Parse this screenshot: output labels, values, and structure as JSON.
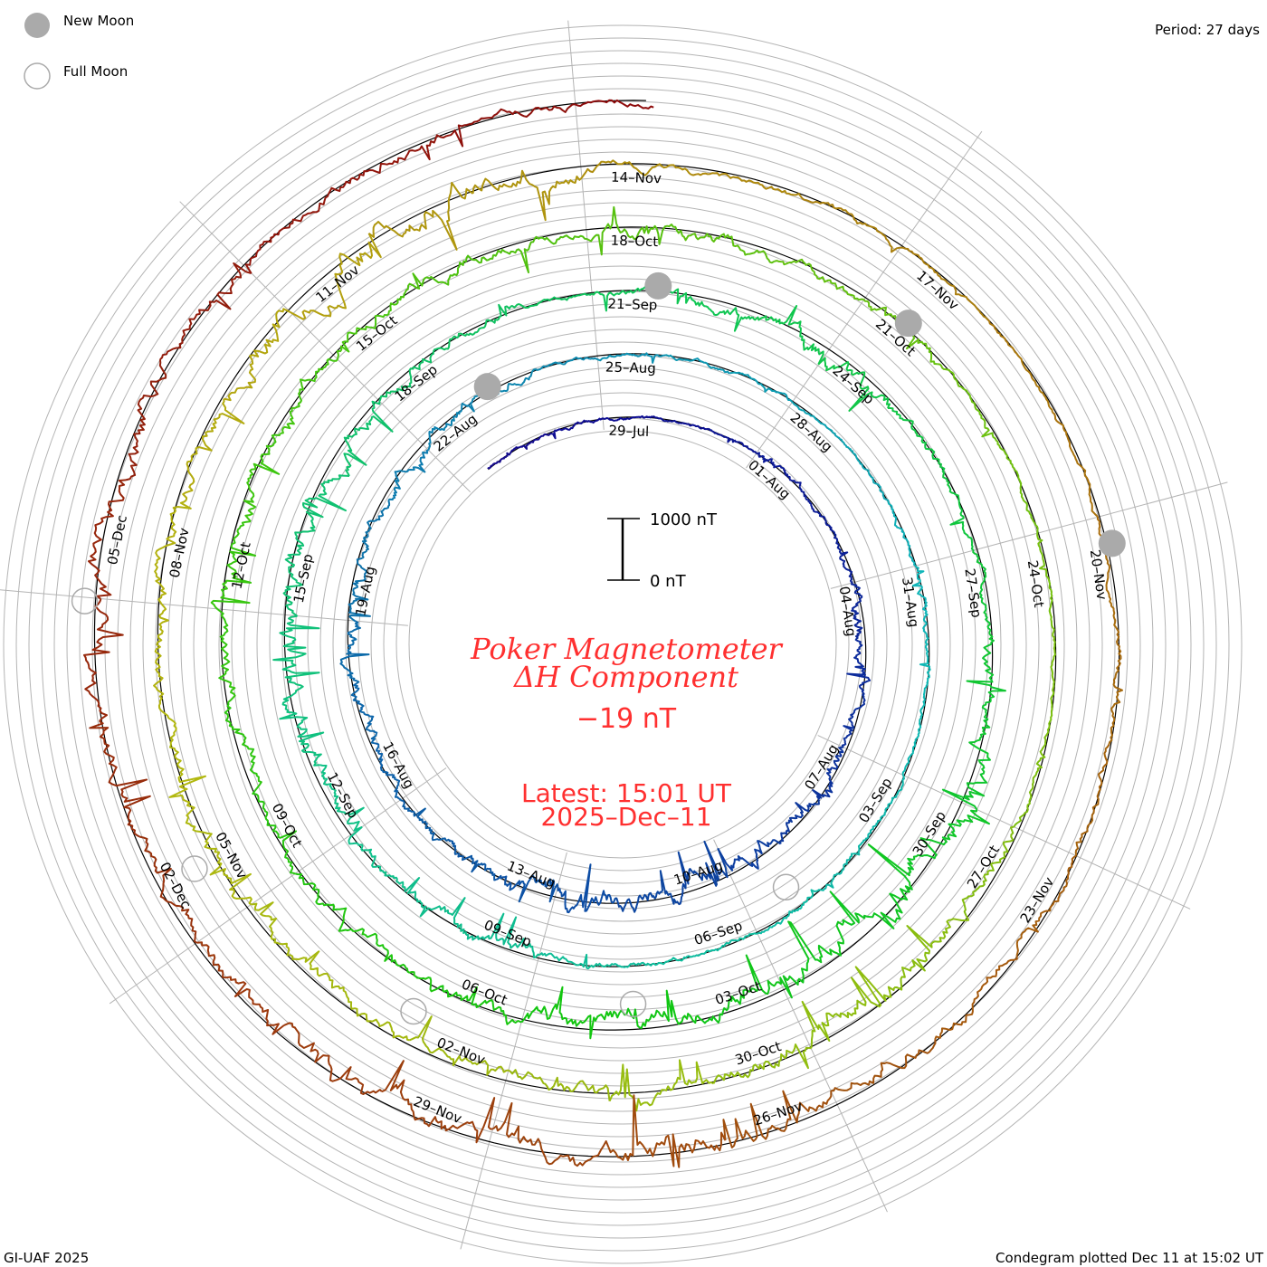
{
  "legend": {
    "new_moon": "New Moon",
    "full_moon": "Full Moon"
  },
  "period_label": "Period: 27 days",
  "footer_left": "GI-UAF 2025",
  "footer_right": "Condegram plotted Dec 11 at 15:02 UT",
  "colors": {
    "title": "#ff3030",
    "grid": "#b4b4b4",
    "moon": "#aaaaaa",
    "start_color": "#1a0a80",
    "end_color": "#c01000"
  },
  "chart_data": {
    "type": "line",
    "subtype": "spiral condegram",
    "title": "Poker Magnetometer",
    "subtitle": "ΔH Component",
    "current_value": "−19 nT",
    "latest_time": "Latest: 15:01 UT",
    "latest_date": "2025–Dec–11",
    "scale_top_label": "1000 nT",
    "scale_bottom_label": "0 nT",
    "scale_nT": 1000,
    "period_days": 27,
    "start_date": "2025-07-26",
    "end_date": "2025-12-11",
    "date_labels": [
      "29–Jul",
      "01–Aug",
      "04–Aug",
      "07–Aug",
      "10–Aug",
      "13–Aug",
      "16–Aug",
      "19–Aug",
      "22–Aug",
      "25–Aug",
      "28–Aug",
      "31–Aug",
      "03–Sep",
      "06–Sep",
      "09–Sep",
      "12–Sep",
      "15–Sep",
      "18–Sep",
      "21–Sep",
      "24–Sep",
      "27–Sep",
      "30–Sep",
      "03–Oct",
      "06–Oct",
      "09–Oct",
      "12–Oct",
      "15–Oct",
      "18–Oct",
      "21–Oct",
      "24–Oct",
      "27–Oct",
      "30–Oct",
      "02–Nov",
      "05–Nov",
      "08–Nov",
      "11–Nov",
      "14–Nov",
      "17–Nov",
      "20–Nov",
      "23–Nov",
      "26–Nov",
      "29–Nov",
      "02–Dec",
      "05–Dec"
    ],
    "new_moons": [
      "2025-08-23",
      "2025-09-21",
      "2025-10-21",
      "2025-11-20"
    ],
    "full_moons": [
      "2025-08-09",
      "2025-09-07",
      "2025-10-07",
      "2025-11-05",
      "2025-12-04"
    ],
    "daily_activity_amplitude_nT": [
      60,
      60,
      80,
      80,
      60,
      60,
      150,
      100,
      120,
      250,
      200,
      150,
      300,
      250,
      350,
      400,
      350,
      450,
      350,
      200,
      200,
      200,
      250,
      300,
      300,
      200,
      250,
      200,
      150,
      80,
      80,
      100,
      80,
      60,
      80,
      100,
      150,
      100,
      80,
      100,
      120,
      150,
      100,
      120,
      150,
      300,
      250,
      250,
      300,
      450,
      500,
      400,
      350,
      300,
      250,
      200,
      120,
      150,
      250,
      300,
      350,
      200,
      150,
      150,
      300,
      450,
      500,
      550,
      500,
      450,
      400,
      450,
      300,
      250,
      300,
      250,
      250,
      300,
      350,
      300,
      300,
      250,
      300,
      250,
      350,
      300,
      200,
      250,
      120,
      100,
      100,
      100,
      120,
      250,
      350,
      450,
      400,
      350,
      300,
      250,
      300,
      300,
      350,
      300,
      250,
      350,
      300,
      500,
      550,
      500,
      350,
      200,
      150,
      150,
      100,
      80,
      100,
      120,
      150,
      150,
      200,
      250,
      300,
      450,
      550,
      500,
      450,
      350,
      300,
      250,
      300,
      350,
      500,
      450,
      300,
      250,
      250,
      200,
      150
    ]
  }
}
